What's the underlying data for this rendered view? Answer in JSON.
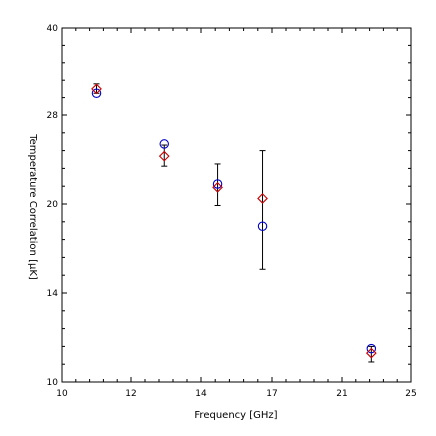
{
  "chart_data": {
    "type": "scatter",
    "title": "",
    "xlabel": "Frequency [GHz]",
    "ylabel": "Temperature Correlation [μK]",
    "xlim": [
      10,
      25
    ],
    "ylim": [
      10,
      40
    ],
    "x_tick_labels": [
      "10",
      "12",
      "14",
      "17",
      "21",
      "25"
    ],
    "y_tick_labels": [
      "10",
      "14",
      "20",
      "28",
      "40"
    ],
    "grid": false,
    "series": [
      {
        "marker": "circle",
        "color": "#0000cc",
        "points": [
          {
            "x": 11.0,
            "y": 31.0
          },
          {
            "x": 12.95,
            "y": 25.4
          },
          {
            "x": 14.7,
            "y": 21.8
          },
          {
            "x": 16.6,
            "y": 18.5
          },
          {
            "x": 22.7,
            "y": 11.5
          }
        ]
      },
      {
        "marker": "diamond",
        "color": "#cc0000",
        "points": [
          {
            "x": 11.0,
            "y": 31.6
          },
          {
            "x": 12.95,
            "y": 24.3
          },
          {
            "x": 14.7,
            "y": 21.5
          },
          {
            "x": 16.6,
            "y": 20.5
          },
          {
            "x": 22.7,
            "y": 11.3
          }
        ]
      }
    ],
    "error_bars": [
      {
        "x": 11.0,
        "low": 31.0,
        "high": 32.3
      },
      {
        "x": 12.95,
        "low": 23.4,
        "high": 25.3
      },
      {
        "x": 14.7,
        "low": 19.9,
        "high": 23.6
      },
      {
        "x": 16.6,
        "low": 15.6,
        "high": 24.8
      },
      {
        "x": 22.7,
        "low": 10.9,
        "high": 11.6
      }
    ]
  }
}
